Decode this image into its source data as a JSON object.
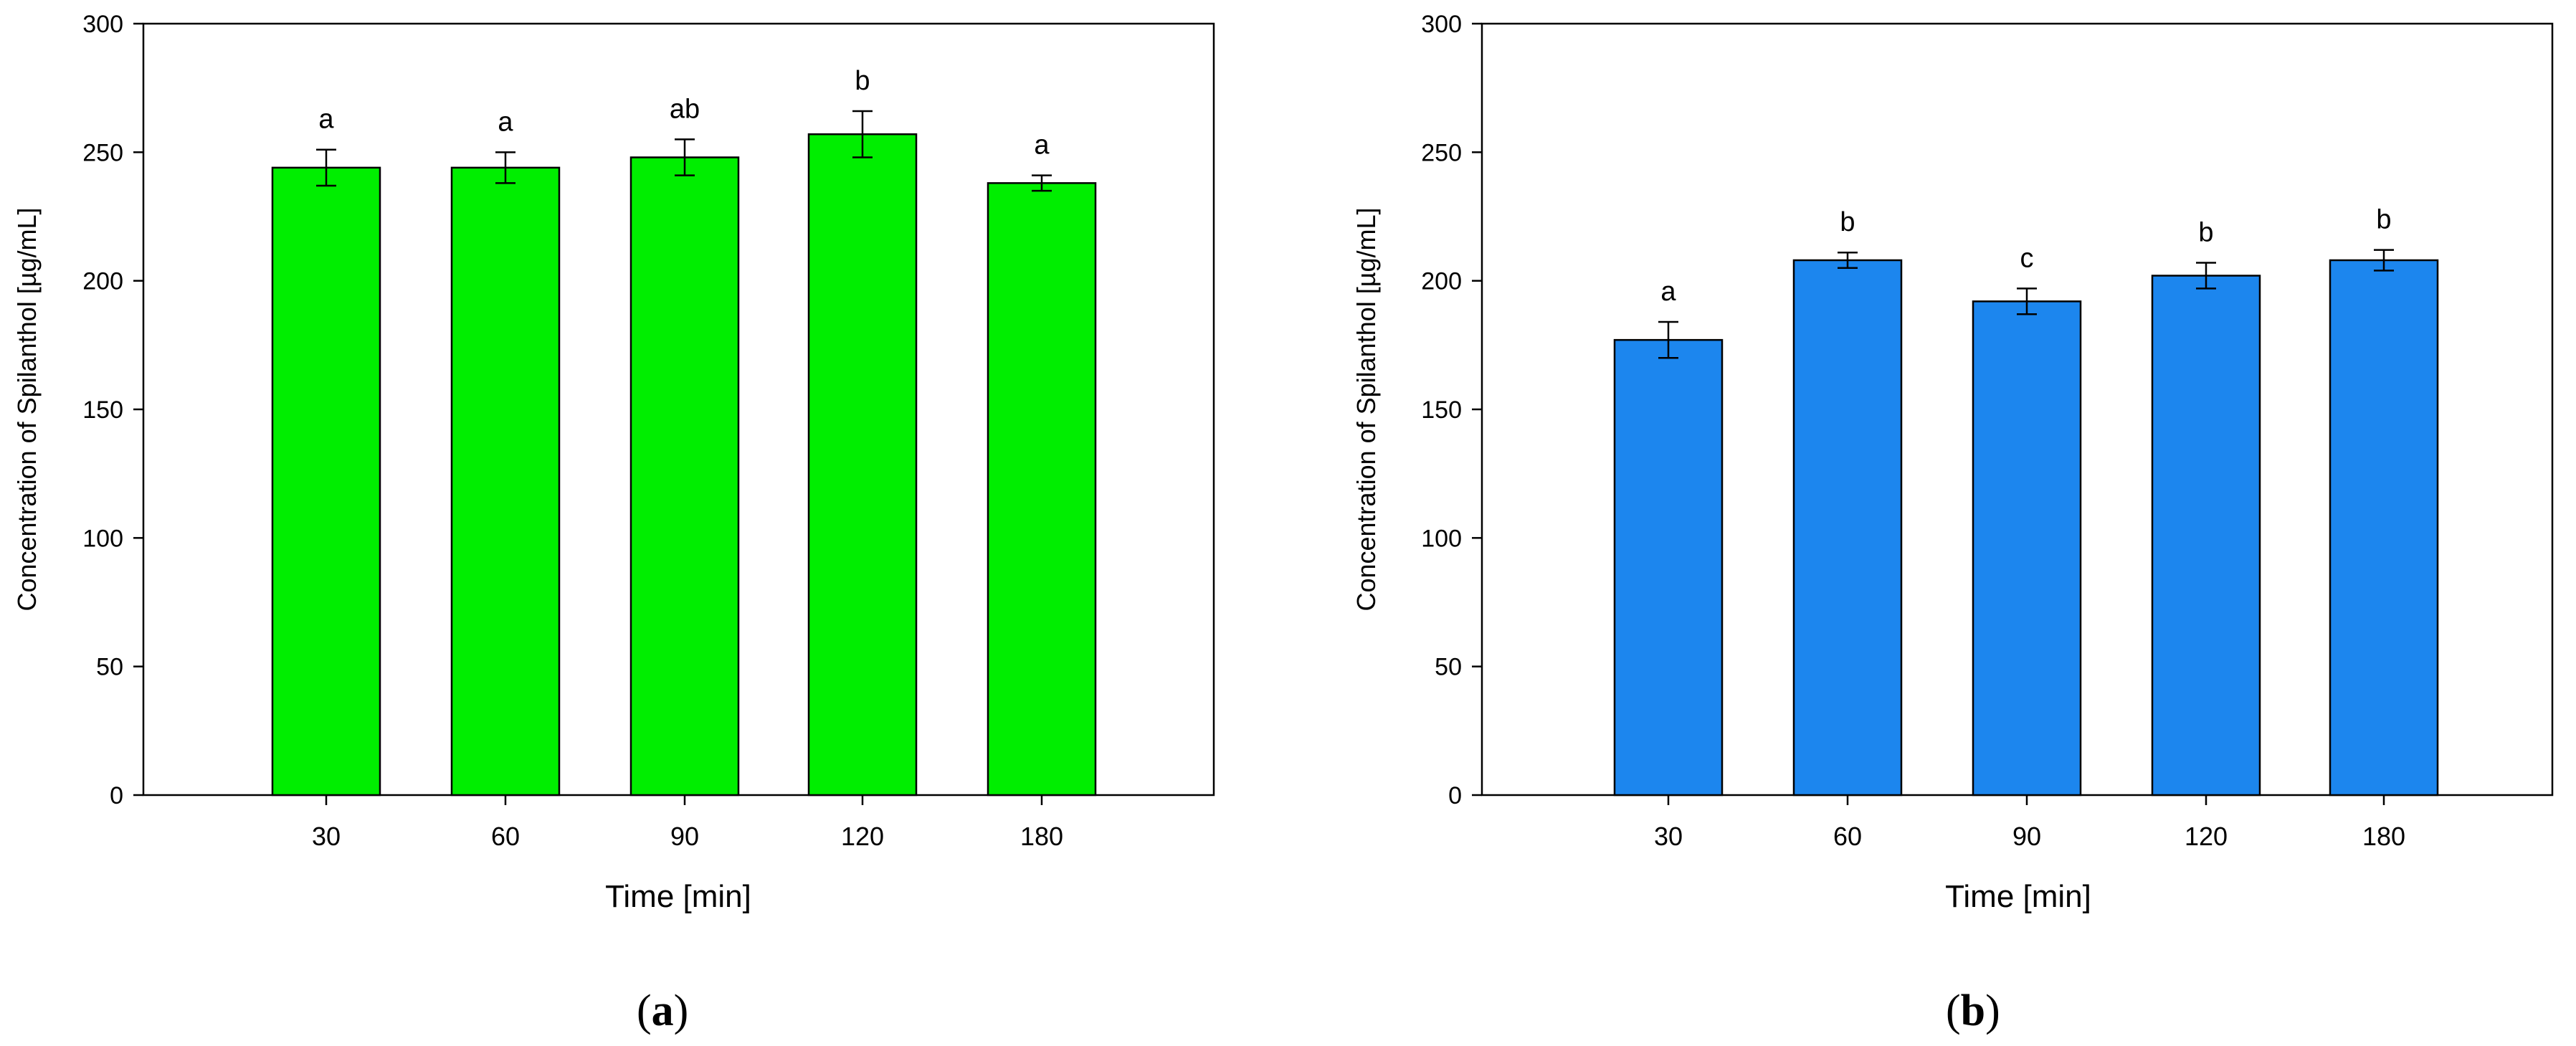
{
  "panels": [
    {
      "label_open": "(",
      "label_letter": "a",
      "label_close": ")"
    },
    {
      "label_open": "(",
      "label_letter": "b",
      "label_close": ")"
    }
  ],
  "colors": {
    "panel_a_bar": "#00ee00",
    "panel_b_bar": "#1c86ee",
    "axis": "#000000"
  },
  "chart_data": [
    {
      "type": "bar",
      "categories": [
        "30",
        "60",
        "90",
        "120",
        "180"
      ],
      "values": [
        244,
        244,
        248,
        257,
        238
      ],
      "errors": [
        7,
        6,
        7,
        9,
        3
      ],
      "annotations": [
        "a",
        "a",
        "ab",
        "b",
        "a"
      ],
      "xlabel": "Time [min]",
      "ylabel": "Concentration of Spilanthol [µg/mL]",
      "ylim": [
        0,
        300
      ],
      "yticks": [
        "0",
        "50",
        "100",
        "150",
        "200",
        "250",
        "300"
      ],
      "grid": false,
      "legend": "none"
    },
    {
      "type": "bar",
      "categories": [
        "30",
        "60",
        "90",
        "120",
        "180"
      ],
      "values": [
        177,
        208,
        192,
        202,
        208
      ],
      "errors": [
        7,
        3,
        5,
        5,
        4
      ],
      "annotations": [
        "a",
        "b",
        "c",
        "b",
        "b"
      ],
      "xlabel": "Time [min]",
      "ylabel": "Concentration of Spilanthol [µg/mL]",
      "ylim": [
        0,
        300
      ],
      "yticks": [
        "0",
        "50",
        "100",
        "150",
        "200",
        "250",
        "300"
      ],
      "grid": false,
      "legend": "none"
    }
  ]
}
